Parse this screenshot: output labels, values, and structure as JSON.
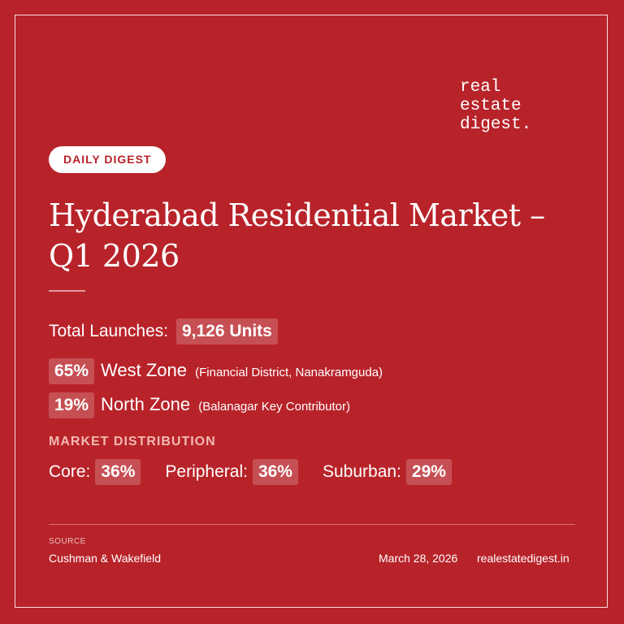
{
  "brand": {
    "logo_lines": [
      "real",
      "estate",
      "digest."
    ]
  },
  "badge": {
    "label": "DAILY DIGEST"
  },
  "headline": {
    "line1": "Hyderabad Residential Market –",
    "line2": "Q1 2026"
  },
  "launches": {
    "label": "Total Launches:",
    "value": "9,126 Units"
  },
  "zones": [
    {
      "percent": "65%",
      "name": "West Zone",
      "note": "(Financial District, Nanakramguda)"
    },
    {
      "percent": "19%",
      "name": "North Zone",
      "note": "(Balanagar Key Contributor)"
    }
  ],
  "distribution": {
    "heading": "MARKET DISTRIBUTION",
    "items": [
      {
        "label": "Core:",
        "value": "36%"
      },
      {
        "label": "Peripheral:",
        "value": "36%"
      },
      {
        "label": "Suburban:",
        "value": "29%"
      }
    ]
  },
  "footer": {
    "source_label": "SOURCE",
    "source_name": "Cushman & Wakefield",
    "date": "March 28, 2026",
    "website": "realestatedigest.in"
  },
  "colors": {
    "background": "#b8232a",
    "text": "#ffffff",
    "accent_heading": "#f4b9b0"
  }
}
